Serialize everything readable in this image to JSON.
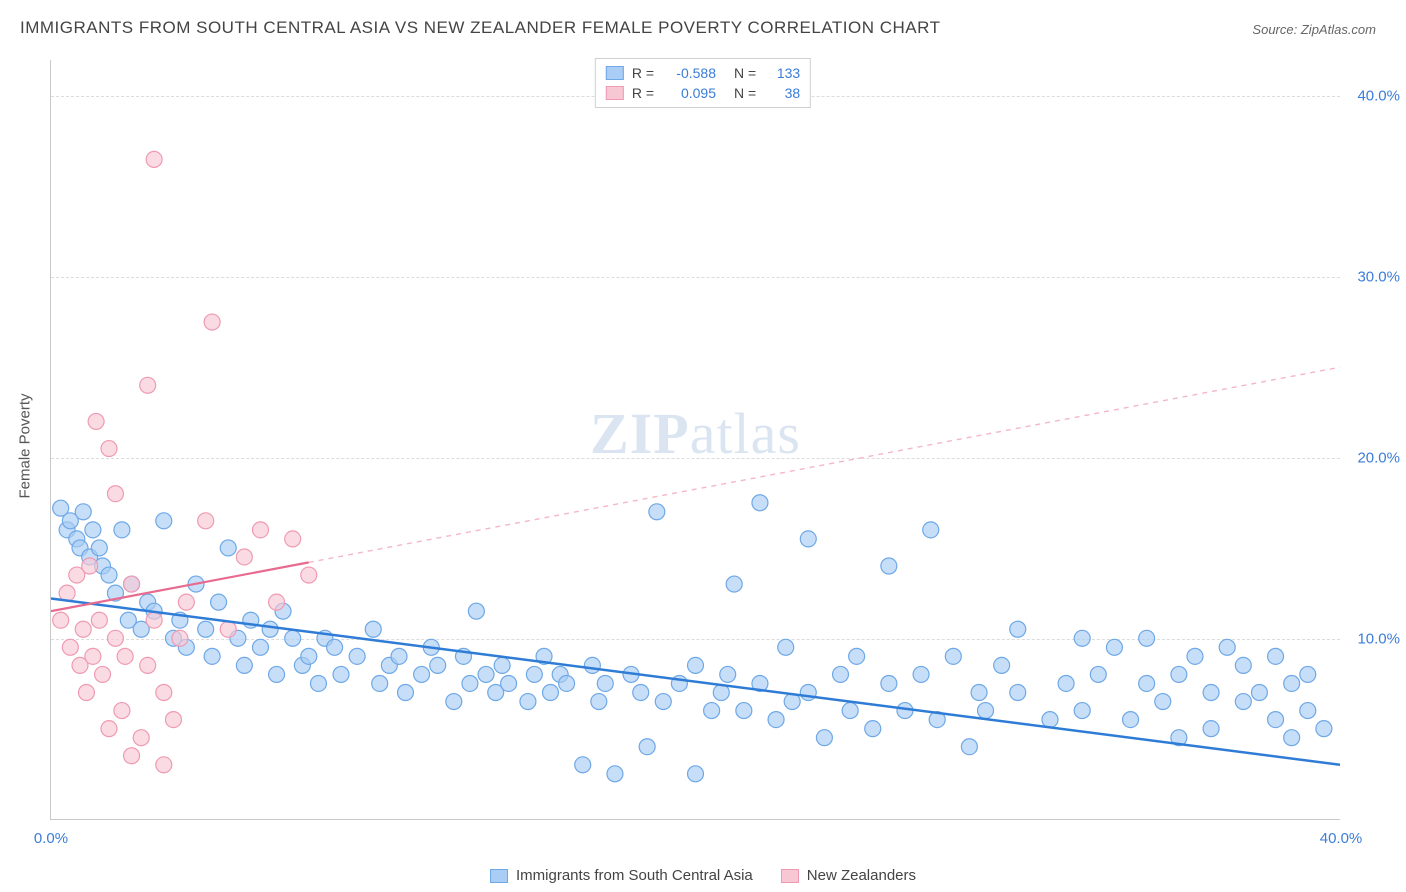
{
  "title": "IMMIGRANTS FROM SOUTH CENTRAL ASIA VS NEW ZEALANDER FEMALE POVERTY CORRELATION CHART",
  "source_label": "Source:",
  "source_value": "ZipAtlas.com",
  "watermark": "ZIPatlas",
  "y_axis_label": "Female Poverty",
  "chart": {
    "type": "scatter",
    "xlim": [
      0,
      40
    ],
    "ylim": [
      0,
      42
    ],
    "x_ticks": [
      {
        "v": 0,
        "label": "0.0%"
      },
      {
        "v": 40,
        "label": "40.0%"
      }
    ],
    "y_ticks": [
      {
        "v": 10,
        "label": "10.0%"
      },
      {
        "v": 20,
        "label": "20.0%"
      },
      {
        "v": 30,
        "label": "30.0%"
      },
      {
        "v": 40,
        "label": "40.0%"
      }
    ],
    "grid_color": "#dcdcdc",
    "background_color": "#ffffff",
    "axis_color": "#c9c9c9",
    "series": [
      {
        "name": "Immigrants from South Central Asia",
        "marker_color_fill": "#a9cdf4",
        "marker_color_stroke": "#6ea8e6",
        "marker_opacity": 0.65,
        "marker_radius": 8,
        "R": "-0.588",
        "N": "133",
        "trend": {
          "x0": 0,
          "y0": 12.2,
          "x1": 40,
          "y1": 3.0,
          "color": "#2e7cd6",
          "width": 2.5,
          "dash": "none"
        },
        "points": [
          [
            0.3,
            17.2
          ],
          [
            0.5,
            16.0
          ],
          [
            0.6,
            16.5
          ],
          [
            0.8,
            15.5
          ],
          [
            0.9,
            15.0
          ],
          [
            1.0,
            17.0
          ],
          [
            1.2,
            14.5
          ],
          [
            1.3,
            16.0
          ],
          [
            1.5,
            15.0
          ],
          [
            1.6,
            14.0
          ],
          [
            1.8,
            13.5
          ],
          [
            2.0,
            12.5
          ],
          [
            2.2,
            16.0
          ],
          [
            2.4,
            11.0
          ],
          [
            2.5,
            13.0
          ],
          [
            2.8,
            10.5
          ],
          [
            3.0,
            12.0
          ],
          [
            3.2,
            11.5
          ],
          [
            3.5,
            16.5
          ],
          [
            3.8,
            10.0
          ],
          [
            4.0,
            11.0
          ],
          [
            4.2,
            9.5
          ],
          [
            4.5,
            13.0
          ],
          [
            4.8,
            10.5
          ],
          [
            5.0,
            9.0
          ],
          [
            5.2,
            12.0
          ],
          [
            5.5,
            15.0
          ],
          [
            5.8,
            10.0
          ],
          [
            6.0,
            8.5
          ],
          [
            6.2,
            11.0
          ],
          [
            6.5,
            9.5
          ],
          [
            6.8,
            10.5
          ],
          [
            7.0,
            8.0
          ],
          [
            7.2,
            11.5
          ],
          [
            7.5,
            10.0
          ],
          [
            7.8,
            8.5
          ],
          [
            8.0,
            9.0
          ],
          [
            8.3,
            7.5
          ],
          [
            8.5,
            10.0
          ],
          [
            8.8,
            9.5
          ],
          [
            9.0,
            8.0
          ],
          [
            9.5,
            9.0
          ],
          [
            10.0,
            10.5
          ],
          [
            10.2,
            7.5
          ],
          [
            10.5,
            8.5
          ],
          [
            10.8,
            9.0
          ],
          [
            11.0,
            7.0
          ],
          [
            11.5,
            8.0
          ],
          [
            11.8,
            9.5
          ],
          [
            12.0,
            8.5
          ],
          [
            12.5,
            6.5
          ],
          [
            12.8,
            9.0
          ],
          [
            13.0,
            7.5
          ],
          [
            13.2,
            11.5
          ],
          [
            13.5,
            8.0
          ],
          [
            13.8,
            7.0
          ],
          [
            14.0,
            8.5
          ],
          [
            14.2,
            7.5
          ],
          [
            14.8,
            6.5
          ],
          [
            15.0,
            8.0
          ],
          [
            15.3,
            9.0
          ],
          [
            15.5,
            7.0
          ],
          [
            15.8,
            8.0
          ],
          [
            16.0,
            7.5
          ],
          [
            16.5,
            3.0
          ],
          [
            16.8,
            8.5
          ],
          [
            17.0,
            6.5
          ],
          [
            17.2,
            7.5
          ],
          [
            17.5,
            2.5
          ],
          [
            18.0,
            8.0
          ],
          [
            18.3,
            7.0
          ],
          [
            18.5,
            4.0
          ],
          [
            18.8,
            17.0
          ],
          [
            19.0,
            6.5
          ],
          [
            19.5,
            7.5
          ],
          [
            20.0,
            8.5
          ],
          [
            20.0,
            2.5
          ],
          [
            20.5,
            6.0
          ],
          [
            20.8,
            7.0
          ],
          [
            21.0,
            8.0
          ],
          [
            21.2,
            13.0
          ],
          [
            21.5,
            6.0
          ],
          [
            22.0,
            7.5
          ],
          [
            22.0,
            17.5
          ],
          [
            22.5,
            5.5
          ],
          [
            22.8,
            9.5
          ],
          [
            23.0,
            6.5
          ],
          [
            23.5,
            7.0
          ],
          [
            23.5,
            15.5
          ],
          [
            24.0,
            4.5
          ],
          [
            24.5,
            8.0
          ],
          [
            24.8,
            6.0
          ],
          [
            25.0,
            9.0
          ],
          [
            25.5,
            5.0
          ],
          [
            26.0,
            14.0
          ],
          [
            26.0,
            7.5
          ],
          [
            26.5,
            6.0
          ],
          [
            27.0,
            8.0
          ],
          [
            27.3,
            16.0
          ],
          [
            27.5,
            5.5
          ],
          [
            28.0,
            9.0
          ],
          [
            28.5,
            4.0
          ],
          [
            28.8,
            7.0
          ],
          [
            29.0,
            6.0
          ],
          [
            29.5,
            8.5
          ],
          [
            30.0,
            7.0
          ],
          [
            30.0,
            10.5
          ],
          [
            31.0,
            5.5
          ],
          [
            31.5,
            7.5
          ],
          [
            32.0,
            10.0
          ],
          [
            32.0,
            6.0
          ],
          [
            32.5,
            8.0
          ],
          [
            33.0,
            9.5
          ],
          [
            33.5,
            5.5
          ],
          [
            34.0,
            7.5
          ],
          [
            34.0,
            10.0
          ],
          [
            34.5,
            6.5
          ],
          [
            35.0,
            8.0
          ],
          [
            35.0,
            4.5
          ],
          [
            35.5,
            9.0
          ],
          [
            36.0,
            7.0
          ],
          [
            36.0,
            5.0
          ],
          [
            36.5,
            9.5
          ],
          [
            37.0,
            6.5
          ],
          [
            37.0,
            8.5
          ],
          [
            37.5,
            7.0
          ],
          [
            38.0,
            5.5
          ],
          [
            38.0,
            9.0
          ],
          [
            38.5,
            7.5
          ],
          [
            38.5,
            4.5
          ],
          [
            39.0,
            6.0
          ],
          [
            39.0,
            8.0
          ],
          [
            39.5,
            5.0
          ]
        ]
      },
      {
        "name": "New Zealanders",
        "marker_color_fill": "#f7c7d4",
        "marker_color_stroke": "#ef9ab2",
        "marker_opacity": 0.65,
        "marker_radius": 8,
        "R": "0.095",
        "N": "38",
        "trend_solid": {
          "x0": 0,
          "y0": 11.5,
          "x1": 8,
          "y1": 14.2,
          "color": "#e86a8f",
          "width": 2.2,
          "dash": "none"
        },
        "trend_dash": {
          "x0": 8,
          "y0": 14.2,
          "x1": 40,
          "y1": 25.0,
          "color": "#f3b7c6",
          "width": 1.4,
          "dash": "5,5"
        },
        "points": [
          [
            0.3,
            11.0
          ],
          [
            0.5,
            12.5
          ],
          [
            0.6,
            9.5
          ],
          [
            0.8,
            13.5
          ],
          [
            0.9,
            8.5
          ],
          [
            1.0,
            10.5
          ],
          [
            1.1,
            7.0
          ],
          [
            1.2,
            14.0
          ],
          [
            1.3,
            9.0
          ],
          [
            1.4,
            22.0
          ],
          [
            1.5,
            11.0
          ],
          [
            1.6,
            8.0
          ],
          [
            1.8,
            20.5
          ],
          [
            1.8,
            5.0
          ],
          [
            2.0,
            18.0
          ],
          [
            2.0,
            10.0
          ],
          [
            2.2,
            6.0
          ],
          [
            2.3,
            9.0
          ],
          [
            2.5,
            13.0
          ],
          [
            2.5,
            3.5
          ],
          [
            2.8,
            4.5
          ],
          [
            3.0,
            24.0
          ],
          [
            3.0,
            8.5
          ],
          [
            3.2,
            36.5
          ],
          [
            3.2,
            11.0
          ],
          [
            3.5,
            7.0
          ],
          [
            3.5,
            3.0
          ],
          [
            3.8,
            5.5
          ],
          [
            4.0,
            10.0
          ],
          [
            4.2,
            12.0
          ],
          [
            4.8,
            16.5
          ],
          [
            5.0,
            27.5
          ],
          [
            5.5,
            10.5
          ],
          [
            6.0,
            14.5
          ],
          [
            6.5,
            16.0
          ],
          [
            7.0,
            12.0
          ],
          [
            7.5,
            15.5
          ],
          [
            8.0,
            13.5
          ]
        ]
      }
    ]
  },
  "legend_top": {
    "r_label": "R =",
    "n_label": "N ="
  },
  "legend_bottom": [
    {
      "swatch_fill": "#a9cdf4",
      "swatch_stroke": "#6ea8e6",
      "label": "Immigrants from South Central Asia"
    },
    {
      "swatch_fill": "#f7c7d4",
      "swatch_stroke": "#ef9ab2",
      "label": "New Zealanders"
    }
  ]
}
